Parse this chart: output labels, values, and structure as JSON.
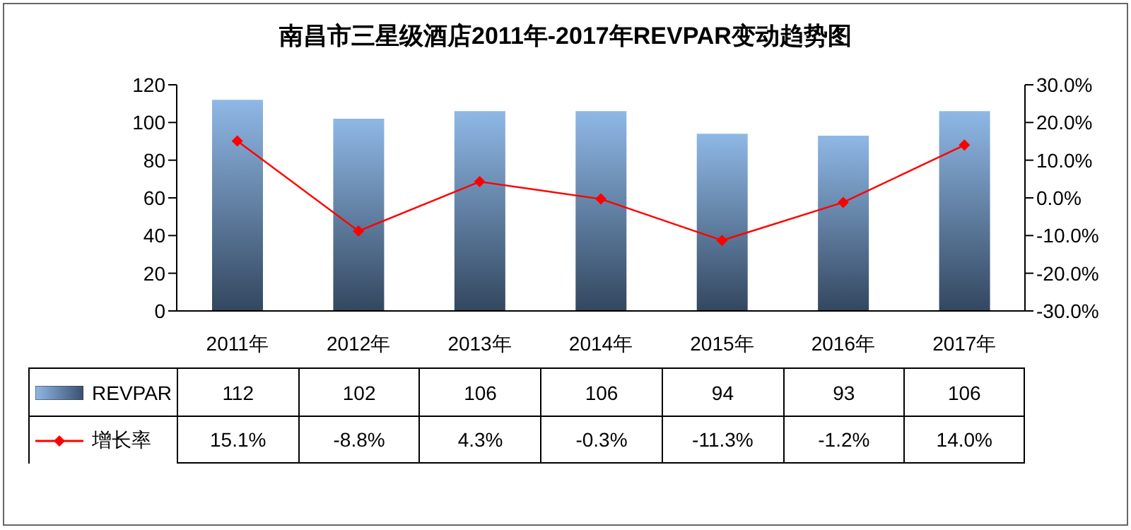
{
  "chart_data": {
    "type": "bar",
    "title": "南昌市三星级酒店2011年-2017年REVPAR变动趋势图",
    "categories": [
      "2011年",
      "2012年",
      "2013年",
      "2014年",
      "2015年",
      "2016年",
      "2017年"
    ],
    "series": [
      {
        "name": "REVPAR",
        "color": "#8fb8e6",
        "values": [
          112,
          102,
          106,
          106,
          94,
          93,
          106
        ],
        "value_labels": [
          "112",
          "102",
          "106",
          "106",
          "94",
          "93",
          "106"
        ]
      },
      {
        "name": "增长率",
        "type": "line",
        "axis": "y2",
        "color": "#ff0000",
        "marker": "diamond",
        "values": [
          15.1,
          -8.8,
          4.3,
          -0.3,
          -11.3,
          -1.2,
          14.0
        ],
        "value_labels": [
          "15.1%",
          "-8.8%",
          "4.3%",
          "-0.3%",
          "-11.3%",
          "-1.2%",
          "14.0%"
        ]
      }
    ],
    "ylim": [
      0,
      120
    ],
    "yticks": [
      0,
      20,
      40,
      60,
      80,
      100,
      120
    ],
    "y2lim": [
      -30,
      30
    ],
    "y2ticks": [
      {
        "value": -30,
        "label": "-30.0%"
      },
      {
        "value": -20,
        "label": "-20.0%"
      },
      {
        "value": -10,
        "label": "-10.0%"
      },
      {
        "value": 0,
        "label": "0.0%"
      },
      {
        "value": 10,
        "label": "10.0%"
      },
      {
        "value": 20,
        "label": "20.0%"
      },
      {
        "value": 30,
        "label": "30.0%"
      }
    ],
    "grid": false,
    "legend": "bottom left"
  }
}
